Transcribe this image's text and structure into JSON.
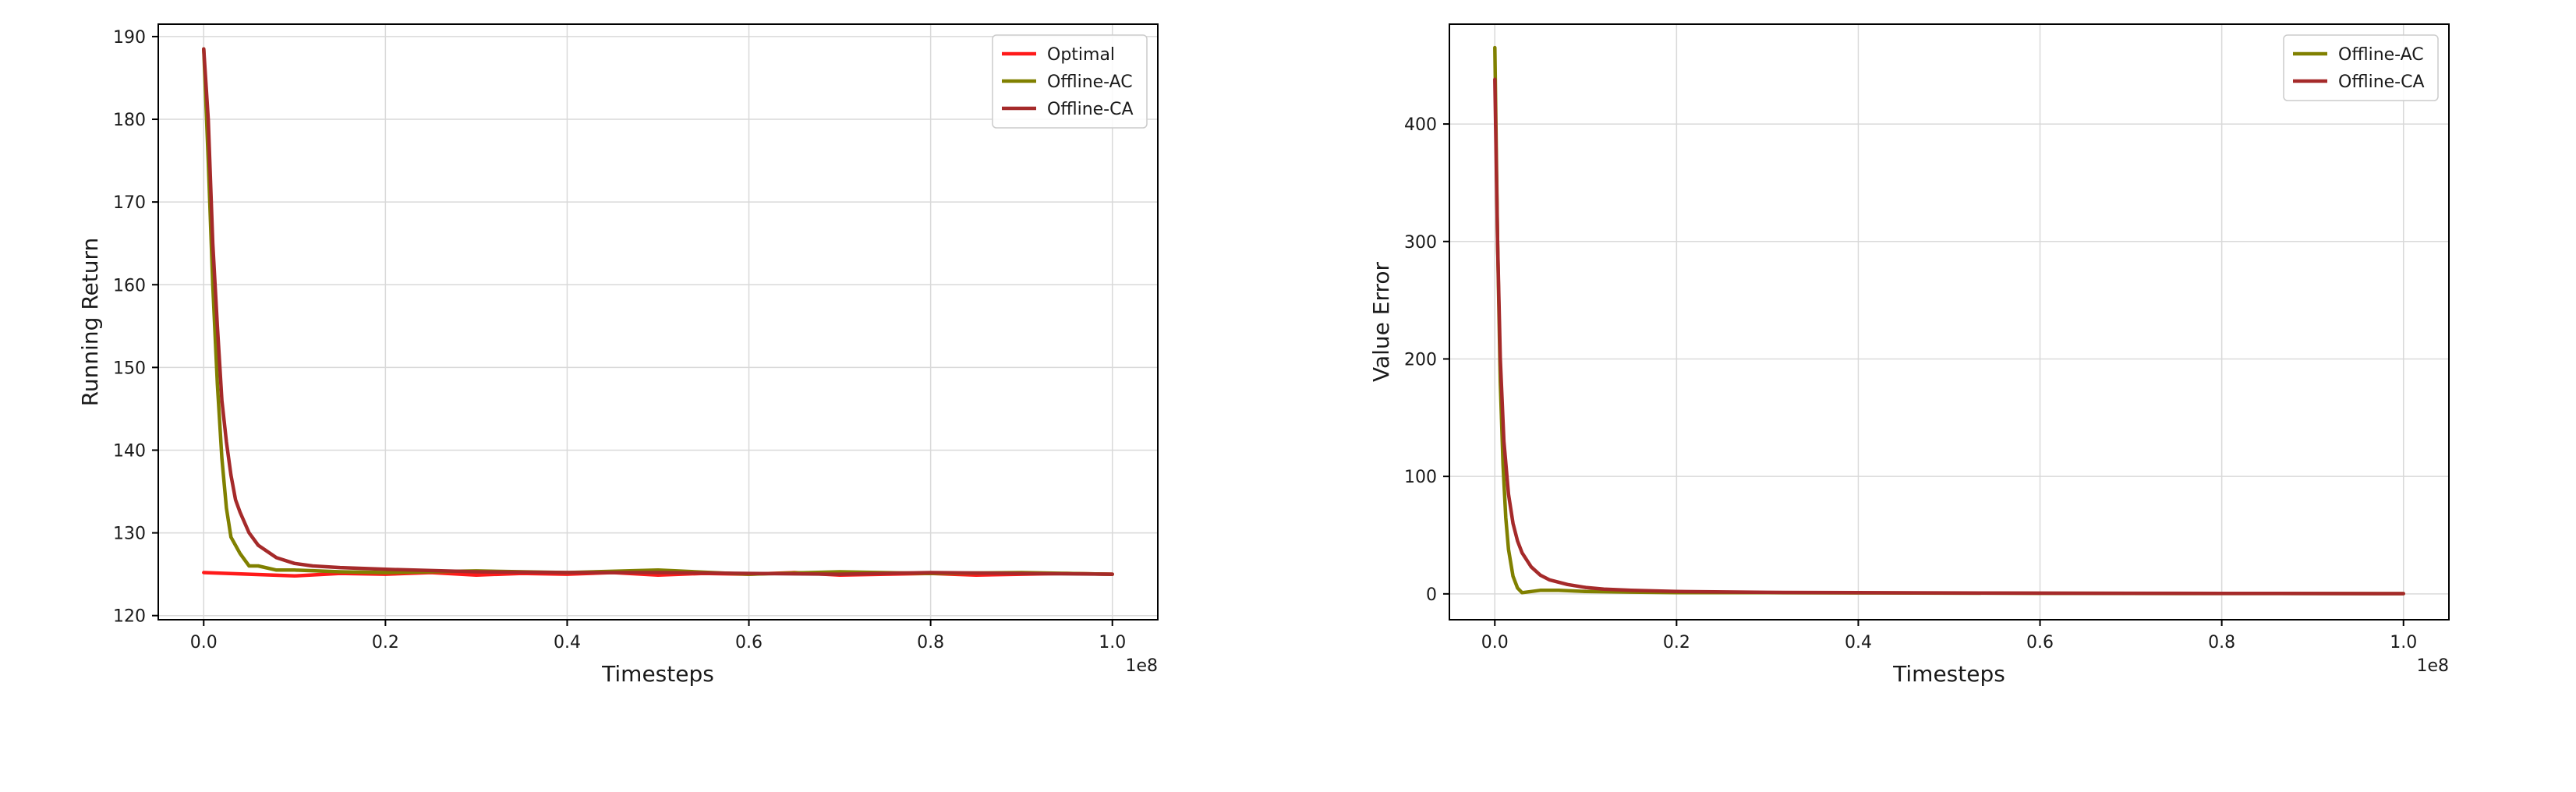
{
  "chart_data": [
    {
      "type": "line",
      "xlabel": "Timesteps",
      "ylabel": "Running Return",
      "x_offset_label": "1e8",
      "xlim": [
        -0.05,
        1.05
      ],
      "ylim": [
        119.5,
        191.5
      ],
      "xticks": [
        0.0,
        0.2,
        0.4,
        0.6,
        0.8,
        1.0
      ],
      "xtick_labels": [
        "0.0",
        "0.2",
        "0.4",
        "0.6",
        "0.8",
        "1.0"
      ],
      "yticks": [
        120,
        130,
        140,
        150,
        160,
        170,
        180,
        190
      ],
      "ytick_labels": [
        "120",
        "130",
        "140",
        "150",
        "160",
        "170",
        "180",
        "190"
      ],
      "grid": true,
      "legend_position": "top-right",
      "series": [
        {
          "name": "Optimal",
          "color": "#ff1a1a",
          "x": [
            0.0,
            0.05,
            0.1,
            0.15,
            0.2,
            0.25,
            0.3,
            0.35,
            0.4,
            0.45,
            0.5,
            0.55,
            0.6,
            0.65,
            0.7,
            0.75,
            0.8,
            0.85,
            0.9,
            0.95,
            1.0
          ],
          "y": [
            125.2,
            125.0,
            124.8,
            125.1,
            125.0,
            125.2,
            124.9,
            125.1,
            125.0,
            125.2,
            124.9,
            125.1,
            125.0,
            125.2,
            124.9,
            125.0,
            125.1,
            124.9,
            125.0,
            125.1,
            125.0
          ]
        },
        {
          "name": "Offline-AC",
          "color": "#808000",
          "x": [
            0.0,
            0.005,
            0.01,
            0.015,
            0.02,
            0.025,
            0.03,
            0.04,
            0.05,
            0.06,
            0.08,
            0.1,
            0.15,
            0.2,
            0.3,
            0.4,
            0.5,
            0.6,
            0.7,
            0.8,
            0.9,
            1.0
          ],
          "y": [
            188.5,
            175.0,
            160.0,
            148.0,
            139.0,
            133.0,
            129.5,
            127.5,
            126.0,
            126.0,
            125.5,
            125.5,
            125.3,
            125.2,
            125.4,
            125.2,
            125.5,
            125.0,
            125.3,
            125.1,
            125.2,
            125.0
          ]
        },
        {
          "name": "Offline-CA",
          "color": "#a52a2a",
          "x": [
            0.0,
            0.005,
            0.01,
            0.015,
            0.02,
            0.025,
            0.03,
            0.035,
            0.04,
            0.05,
            0.06,
            0.08,
            0.1,
            0.12,
            0.15,
            0.2,
            0.3,
            0.4,
            0.5,
            0.6,
            0.7,
            0.8,
            0.9,
            1.0
          ],
          "y": [
            188.5,
            180.0,
            165.0,
            155.0,
            146.0,
            141.0,
            137.0,
            134.0,
            132.5,
            130.0,
            128.5,
            127.0,
            126.3,
            126.0,
            125.8,
            125.6,
            125.3,
            125.2,
            125.2,
            125.1,
            125.0,
            125.2,
            125.1,
            125.0
          ]
        }
      ]
    },
    {
      "type": "line",
      "xlabel": "Timesteps",
      "ylabel": "Value Error",
      "x_offset_label": "1e8",
      "xlim": [
        -0.05,
        1.05
      ],
      "ylim": [
        -22,
        485
      ],
      "xticks": [
        0.0,
        0.2,
        0.4,
        0.6,
        0.8,
        1.0
      ],
      "xtick_labels": [
        "0.0",
        "0.2",
        "0.4",
        "0.6",
        "0.8",
        "1.0"
      ],
      "yticks": [
        0,
        100,
        200,
        300,
        400
      ],
      "ytick_labels": [
        "0",
        "100",
        "200",
        "300",
        "400"
      ],
      "grid": true,
      "legend_position": "top-right",
      "series": [
        {
          "name": "Offline-AC",
          "color": "#808000",
          "x": [
            0.0,
            0.003,
            0.006,
            0.009,
            0.012,
            0.015,
            0.02,
            0.025,
            0.03,
            0.04,
            0.05,
            0.07,
            0.1,
            0.15,
            0.2,
            0.3,
            0.4,
            0.6,
            0.8,
            1.0
          ],
          "y": [
            465,
            300,
            180,
            110,
            65,
            38,
            15,
            5,
            1,
            2,
            3,
            3,
            2,
            1.5,
            1,
            1,
            0.8,
            0.5,
            0.3,
            0.2
          ]
        },
        {
          "name": "Offline-CA",
          "color": "#a52a2a",
          "x": [
            0.0,
            0.003,
            0.006,
            0.01,
            0.015,
            0.02,
            0.025,
            0.03,
            0.04,
            0.05,
            0.06,
            0.08,
            0.1,
            0.12,
            0.15,
            0.2,
            0.3,
            0.4,
            0.6,
            0.8,
            1.0
          ],
          "y": [
            438,
            300,
            200,
            130,
            85,
            60,
            45,
            35,
            23,
            16,
            12,
            8,
            5.5,
            4,
            3,
            2,
            1.3,
            1,
            0.6,
            0.4,
            0.2
          ]
        }
      ]
    }
  ]
}
